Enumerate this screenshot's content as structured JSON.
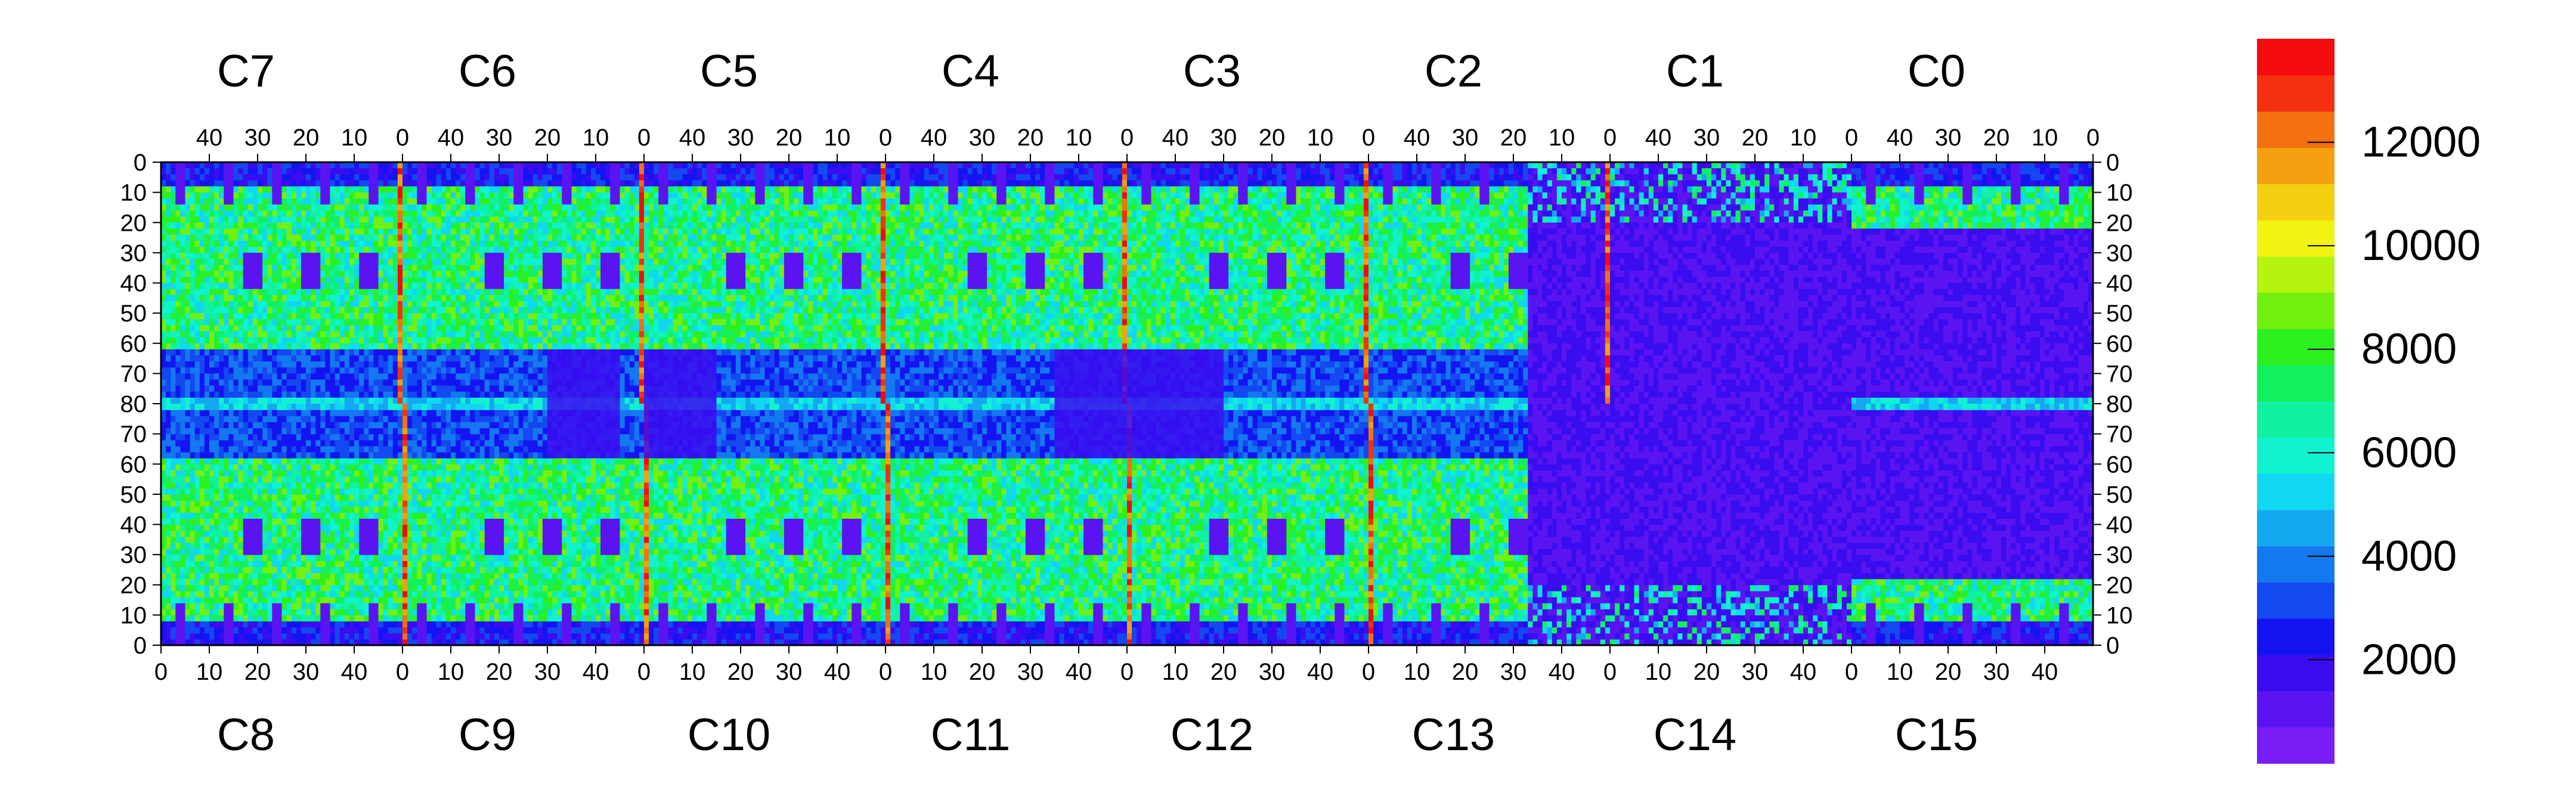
{
  "chart_data": {
    "type": "heatmap",
    "title": "",
    "colorbar": {
      "min": 0,
      "max": 14000,
      "ticks": [
        2000,
        4000,
        6000,
        8000,
        10000,
        12000
      ],
      "tick_labels": [
        "2000",
        "4000",
        "6000",
        "8000",
        "10000",
        "12000"
      ],
      "colors": [
        "#7a1cf5",
        "#5a14f2",
        "#3a0cf0",
        "#1414f2",
        "#1448f0",
        "#1478f0",
        "#14a8f0",
        "#10d8f2",
        "#10f2d0",
        "#10f2a0",
        "#12f060",
        "#2cf020",
        "#72f010",
        "#b4f410",
        "#f0f410",
        "#f4d010",
        "#f4a010",
        "#f47010",
        "#f43010",
        "#f40c0c"
      ]
    },
    "top_labels": [
      "C7",
      "C6",
      "C5",
      "C4",
      "C3",
      "C2",
      "C1",
      "C0"
    ],
    "bottom_labels": [
      "C8",
      "C9",
      "C10",
      "C11",
      "C12",
      "C13",
      "C14",
      "C15"
    ],
    "top_x_ticks": [
      "40",
      "30",
      "20",
      "10",
      "0"
    ],
    "bottom_x_ticks": [
      "0",
      "10",
      "20",
      "30",
      "40"
    ],
    "y_ticks_top_half": [
      "0",
      "10",
      "20",
      "30",
      "40",
      "50",
      "60",
      "70",
      "80"
    ],
    "y_ticks_bottom_half": [
      "70",
      "60",
      "50",
      "40",
      "30",
      "20",
      "10",
      "0"
    ],
    "structure": {
      "modules": 8,
      "columns_per_module": 50,
      "rows_per_half": 80,
      "hot_strip_columns_by_module": [
        0,
        0,
        0,
        0,
        0,
        0,
        1,
        2
      ],
      "rectangles_rows": [
        30,
        40
      ],
      "low_region_rows": [
        62,
        80
      ]
    }
  }
}
